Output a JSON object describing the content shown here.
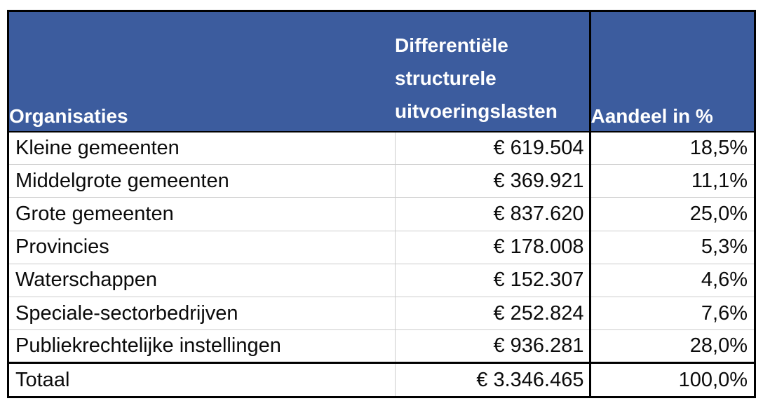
{
  "chart_data": {
    "type": "table",
    "title": "",
    "columns": [
      "Organisaties",
      "Differentiële structurele uitvoeringslasten",
      "Aandeel in %"
    ],
    "header": {
      "col1": "Organisaties",
      "col2_lines": [
        "Differentiële",
        "structurele",
        "uitvoeringslasten"
      ],
      "col3": "Aandeel in %"
    },
    "rows": [
      {
        "organisatie": "Kleine gemeenten",
        "bedrag": "€ 619.504",
        "aandeel": "18,5%"
      },
      {
        "organisatie": "Middelgrote gemeenten",
        "bedrag": "€ 369.921",
        "aandeel": "11,1%"
      },
      {
        "organisatie": "Grote gemeenten",
        "bedrag": "€ 837.620",
        "aandeel": "25,0%"
      },
      {
        "organisatie": "Provincies",
        "bedrag": "€ 178.008",
        "aandeel": "5,3%"
      },
      {
        "organisatie": "Waterschappen",
        "bedrag": "€ 152.307",
        "aandeel": "4,6%"
      },
      {
        "organisatie": "Speciale-sectorbedrijven",
        "bedrag": "€ 252.824",
        "aandeel": "7,6%"
      },
      {
        "organisatie": "Publiekrechtelijke instellingen",
        "bedrag": "€ 936.281",
        "aandeel": "28,0%"
      }
    ],
    "total_row": {
      "organisatie": "Totaal",
      "bedrag": "€ 3.346.465",
      "aandeel": "100,0%"
    },
    "values_numeric": {
      "amounts_eur": [
        619504,
        369921,
        837620,
        178008,
        152307,
        252824,
        936281
      ],
      "shares_pct": [
        18.5,
        11.1,
        25.0,
        5.3,
        4.6,
        7.6,
        28.0
      ],
      "total_eur": 3346465,
      "total_pct": 100.0
    },
    "colors": {
      "header_bg": "#3C5C9E",
      "header_text": "#FFFFFF",
      "body_text": "#0B0B0B",
      "grid_thin": "#CCCCCC",
      "grid_thick": "#000000"
    }
  }
}
